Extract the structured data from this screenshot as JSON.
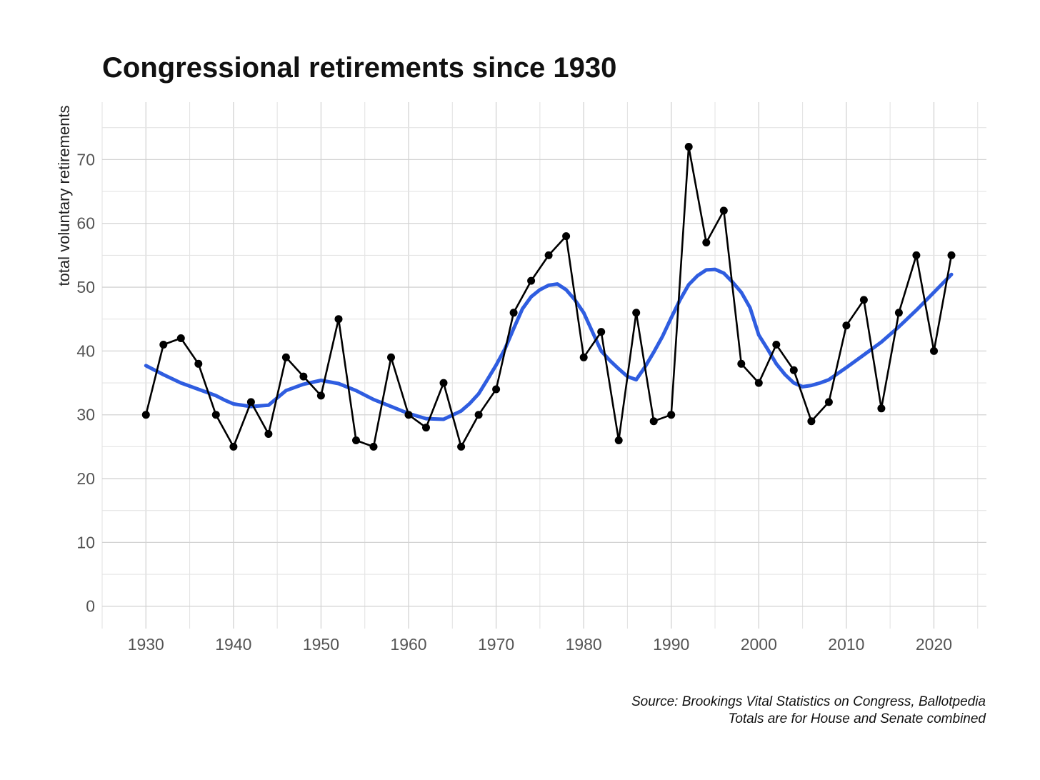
{
  "chart_data": {
    "type": "line",
    "title": "Congressional retirements since 1930",
    "xlabel": "",
    "ylabel": "total voluntary retirements",
    "xlim": [
      1925,
      2026
    ],
    "ylim": [
      -3.5,
      79
    ],
    "x_ticks": [
      1930,
      1940,
      1950,
      1960,
      1970,
      1980,
      1990,
      2000,
      2010,
      2020
    ],
    "y_ticks": [
      0,
      10,
      20,
      30,
      40,
      50,
      60,
      70
    ],
    "grid": true,
    "caption": [
      "Source: Brookings Vital Statistics on Congress, Ballotpedia",
      "Totals are for House and Senate combined"
    ],
    "series": [
      {
        "type": "line+points",
        "color": "#000000",
        "x": [
          1930,
          1932,
          1934,
          1936,
          1938,
          1940,
          1942,
          1944,
          1946,
          1948,
          1950,
          1952,
          1954,
          1956,
          1958,
          1960,
          1962,
          1964,
          1966,
          1968,
          1970,
          1972,
          1974,
          1976,
          1978,
          1980,
          1982,
          1984,
          1986,
          1988,
          1990,
          1992,
          1994,
          1996,
          1998,
          2000,
          2002,
          2004,
          2006,
          2008,
          2010,
          2012,
          2014,
          2016,
          2018,
          2020,
          2022
        ],
        "values": [
          30,
          41,
          42,
          38,
          30,
          25,
          32,
          27,
          39,
          36,
          33,
          45,
          26,
          25,
          39,
          30,
          28,
          35,
          25,
          30,
          34,
          46,
          51,
          55,
          58,
          39,
          43,
          26,
          46,
          29,
          30,
          72,
          57,
          62,
          38,
          35,
          41,
          37,
          29,
          32,
          44,
          48,
          31,
          46,
          55,
          40,
          55
        ]
      },
      {
        "type": "smooth-trend",
        "color": "#2f5de0",
        "x": [
          1930,
          1932,
          1934,
          1936,
          1938,
          1939,
          1940,
          1942,
          1944,
          1946,
          1948,
          1950,
          1952,
          1954,
          1956,
          1958,
          1960,
          1962,
          1964,
          1966,
          1967,
          1968,
          1969,
          1970,
          1971,
          1972,
          1973,
          1974,
          1975,
          1976,
          1977,
          1978,
          1979,
          1980,
          1981,
          1982,
          1983,
          1984,
          1985,
          1986,
          1987,
          1988,
          1989,
          1990,
          1991,
          1992,
          1993,
          1994,
          1995,
          1996,
          1997,
          1998,
          1999,
          2000,
          2001,
          2002,
          2003,
          2004,
          2005,
          2006,
          2007,
          2008,
          2010,
          2012,
          2014,
          2016,
          2018,
          2020,
          2022
        ],
        "values": [
          37.7,
          36.3,
          35.0,
          34.0,
          33.0,
          32.3,
          31.7,
          31.3,
          31.5,
          33.8,
          34.8,
          35.4,
          34.9,
          33.8,
          32.4,
          31.3,
          30.2,
          29.4,
          29.3,
          30.6,
          31.8,
          33.3,
          35.5,
          37.8,
          40.3,
          43.5,
          46.6,
          48.5,
          49.6,
          50.3,
          50.5,
          49.6,
          48.0,
          46.0,
          43.0,
          40.0,
          38.5,
          37.2,
          36.0,
          35.5,
          37.5,
          39.8,
          42.3,
          45.2,
          48.0,
          50.4,
          51.8,
          52.7,
          52.8,
          52.2,
          50.8,
          49.2,
          46.8,
          42.5,
          40.3,
          38.0,
          36.3,
          35.0,
          34.4,
          34.6,
          35.0,
          35.5,
          37.4,
          39.4,
          41.4,
          43.8,
          46.4,
          49.2,
          52.0
        ]
      }
    ]
  }
}
